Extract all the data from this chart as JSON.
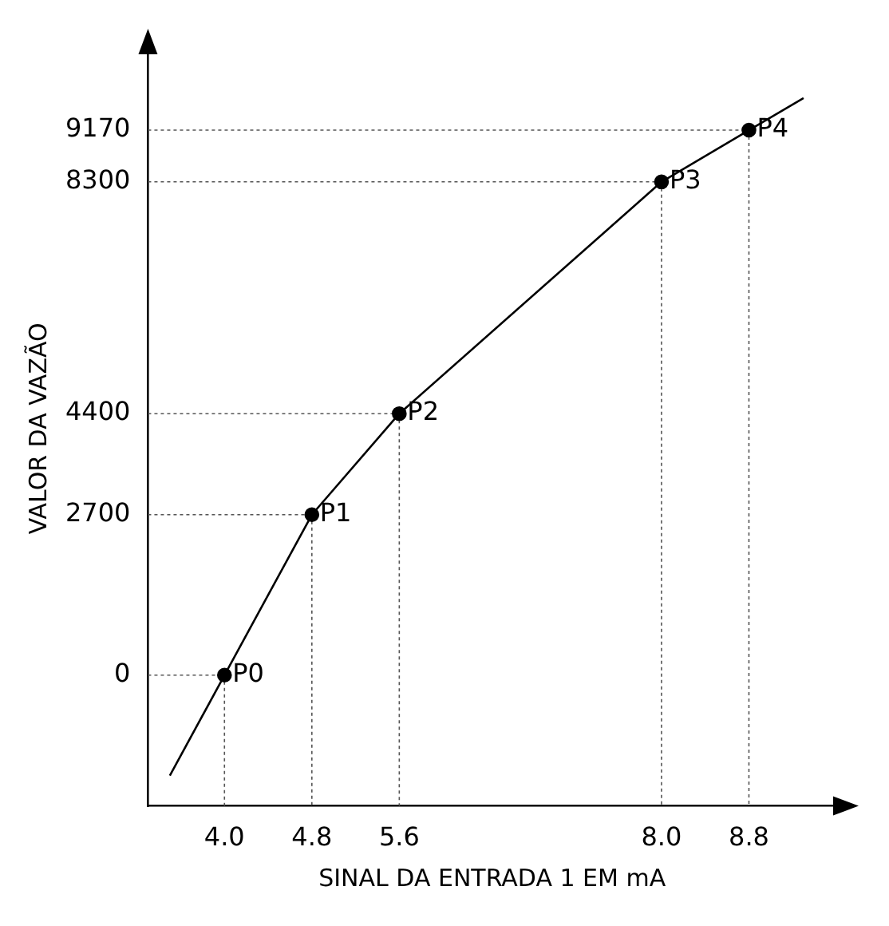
{
  "chart_data": {
    "type": "line",
    "xlabel": "SINAL DA ENTRADA 1 EM mA",
    "ylabel": "VALOR DA VAZÃO",
    "xlim": [
      3.3,
      9.6
    ],
    "ylim": [
      -2200,
      10500
    ],
    "xticks": [
      {
        "value": 4,
        "label": "4.0"
      },
      {
        "value": 4.8,
        "label": "4.8"
      },
      {
        "value": 5.6,
        "label": "5.6"
      },
      {
        "value": 8,
        "label": "8.0"
      },
      {
        "value": 8.8,
        "label": "8.8"
      }
    ],
    "yticks": [
      0,
      2700,
      4400,
      8300,
      9170
    ],
    "grid": true,
    "legend": false,
    "series": [
      {
        "color": "#000000",
        "marker": "none",
        "line_style": "solid",
        "x": [
          3.5,
          4,
          4.8,
          5.6,
          8,
          8.8,
          9.3
        ],
        "values": [
          -1690,
          0,
          2700,
          4400,
          8300,
          9170,
          9710
        ]
      },
      {
        "type": "scatter",
        "color": "#000000",
        "marker": "circle",
        "x": [
          4,
          4.8,
          5.6,
          8,
          8.8
        ],
        "values": [
          0,
          2700,
          4400,
          8300,
          9170
        ]
      }
    ],
    "annotations": [
      {
        "text": "P0",
        "x": 4,
        "y": 0
      },
      {
        "text": "P1",
        "x": 4.8,
        "y": 2700
      },
      {
        "text": "P2",
        "x": 5.6,
        "y": 4400
      },
      {
        "text": "P3",
        "x": 8,
        "y": 8300
      },
      {
        "text": "P4",
        "x": 8.8,
        "y": 9170
      }
    ]
  }
}
